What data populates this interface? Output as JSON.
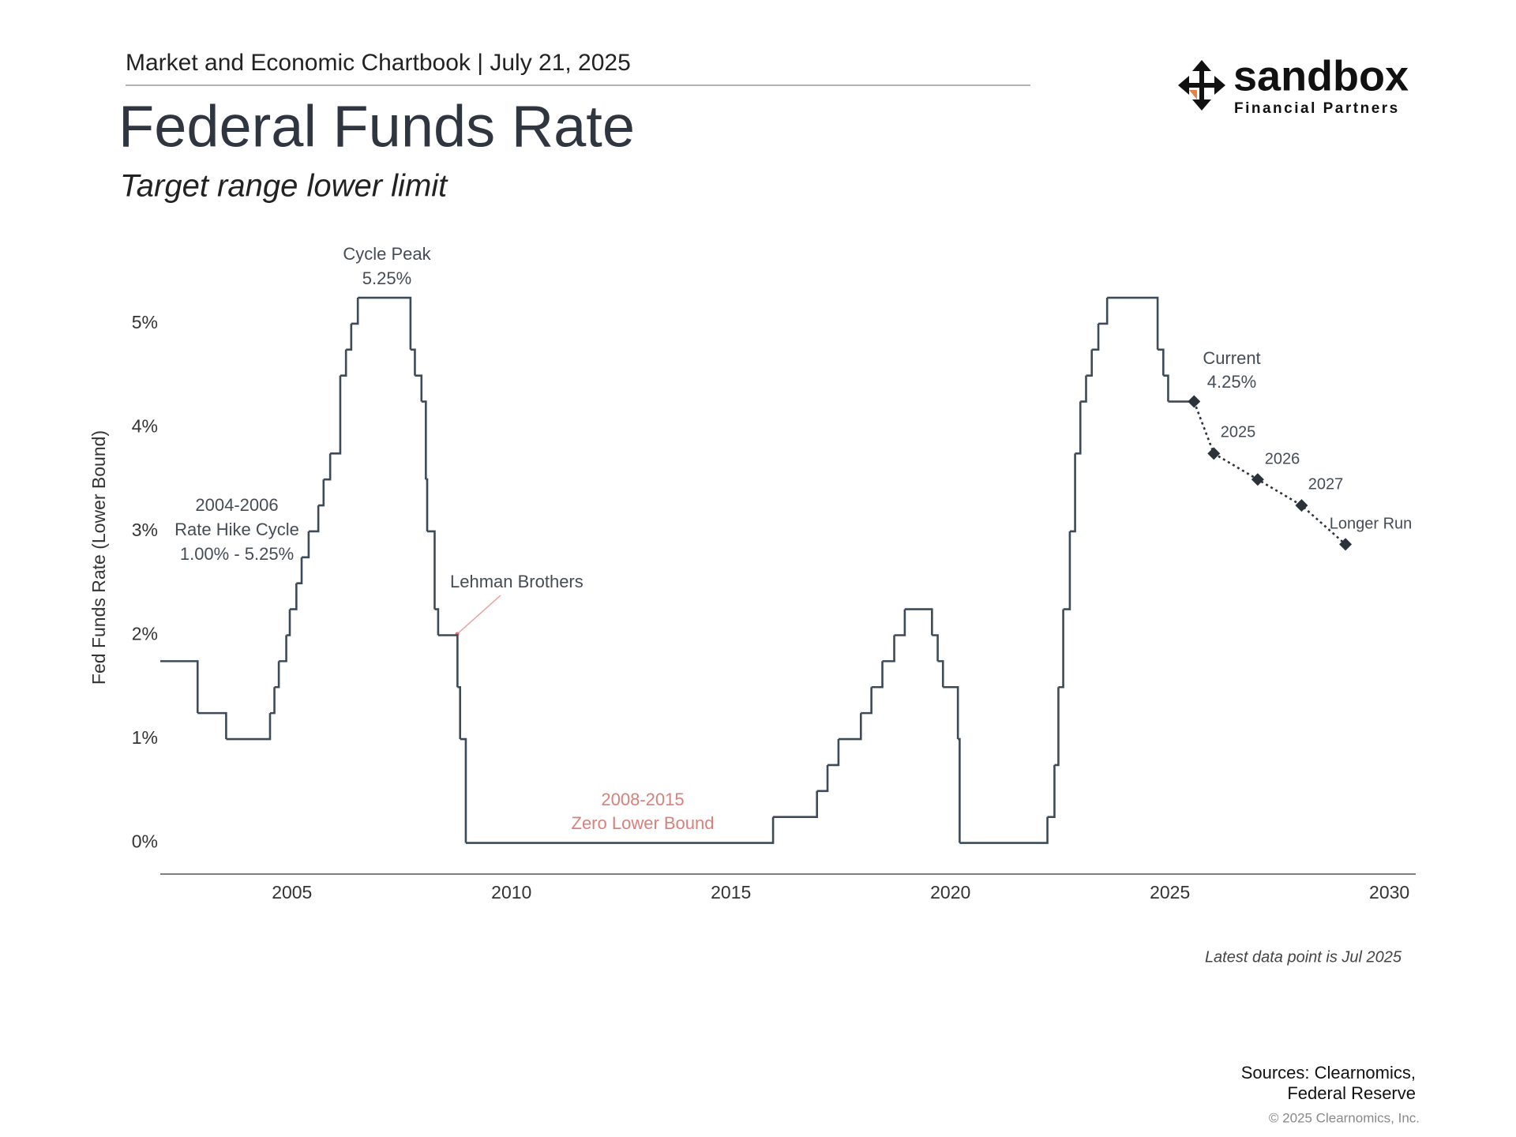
{
  "header": {
    "chartbook": "Market and Economic Chartbook | July 21, 2025",
    "logo": {
      "name": "sandbox",
      "tagline": "Financial Partners"
    }
  },
  "chart_data": {
    "type": "step",
    "title": "Federal Funds Rate",
    "subtitle": "Target range lower limit",
    "y_label": "Fed Funds Rate (Lower Bound)",
    "color": "#3d4a57",
    "x": [
      2002.0,
      2002.85,
      2003.5,
      2004.5,
      2004.6,
      2004.7,
      2004.87,
      2004.95,
      2005.1,
      2005.22,
      2005.38,
      2005.6,
      2005.72,
      2005.87,
      2006.1,
      2006.23,
      2006.35,
      2006.5,
      2007.7,
      2007.8,
      2007.95,
      2008.05,
      2008.08,
      2008.25,
      2008.33,
      2008.77,
      2008.83,
      2008.96,
      2015.96,
      2016.96,
      2017.2,
      2017.45,
      2017.96,
      2018.2,
      2018.45,
      2018.72,
      2018.96,
      2019.58,
      2019.71,
      2019.83,
      2020.17,
      2020.21,
      2022.21,
      2022.37,
      2022.46,
      2022.57,
      2022.72,
      2022.84,
      2022.96,
      2023.09,
      2023.22,
      2023.37,
      2023.57,
      2024.72,
      2024.85,
      2024.96,
      2025.55
    ],
    "values": [
      1.75,
      1.25,
      1.0,
      1.25,
      1.5,
      1.75,
      2.0,
      2.25,
      2.5,
      2.75,
      3.0,
      3.25,
      3.5,
      3.75,
      4.5,
      4.75,
      5.0,
      5.25,
      4.75,
      4.5,
      4.25,
      3.5,
      3.0,
      2.25,
      2.0,
      1.5,
      1.0,
      0.0,
      0.25,
      0.5,
      0.75,
      1.0,
      1.25,
      1.5,
      1.75,
      2.0,
      2.25,
      2.0,
      1.75,
      1.5,
      1.0,
      0.0,
      0.25,
      0.75,
      1.5,
      2.25,
      3.0,
      3.75,
      4.25,
      4.5,
      4.75,
      5.0,
      5.25,
      4.75,
      4.5,
      4.25,
      4.25
    ],
    "projection": {
      "color": "#2b323a",
      "x": [
        2025.55,
        2026.0,
        2027.0,
        2028.0,
        2029.0
      ],
      "values": [
        4.25,
        3.75,
        3.5,
        3.25,
        2.875
      ],
      "labels": [
        "Current",
        "2025",
        "2026",
        "2027",
        "Longer Run"
      ],
      "value_labels": [
        "4.25%",
        null,
        null,
        null,
        null
      ]
    },
    "xlim": [
      2002.0,
      2030.6
    ],
    "xticks": [
      2005,
      2010,
      2015,
      2020,
      2025,
      2030
    ],
    "ylim": [
      -0.3,
      5.6
    ],
    "yticks": [
      {
        "value": 0,
        "label": "0%"
      },
      {
        "value": 1,
        "label": "1%"
      },
      {
        "value": 2,
        "label": "2%"
      },
      {
        "value": 3,
        "label": "3%"
      },
      {
        "value": 4,
        "label": "4%"
      },
      {
        "value": 5,
        "label": "5%"
      }
    ],
    "grid": false,
    "annotations": {
      "cycle_peak": [
        "Cycle Peak",
        "5.25%"
      ],
      "hike_cycle": [
        "2004-2006",
        "Rate Hike Cycle",
        "1.00% - 5.25%"
      ],
      "lehman": "Lehman Brothers",
      "zlb": [
        "2008-2015",
        "Zero Lower Bound"
      ]
    },
    "note": "Latest data point is Jul 2025"
  },
  "footer": {
    "sources": [
      "Sources: Clearnomics,",
      "Federal Reserve"
    ],
    "copyright": "© 2025 Clearnomics, Inc."
  }
}
